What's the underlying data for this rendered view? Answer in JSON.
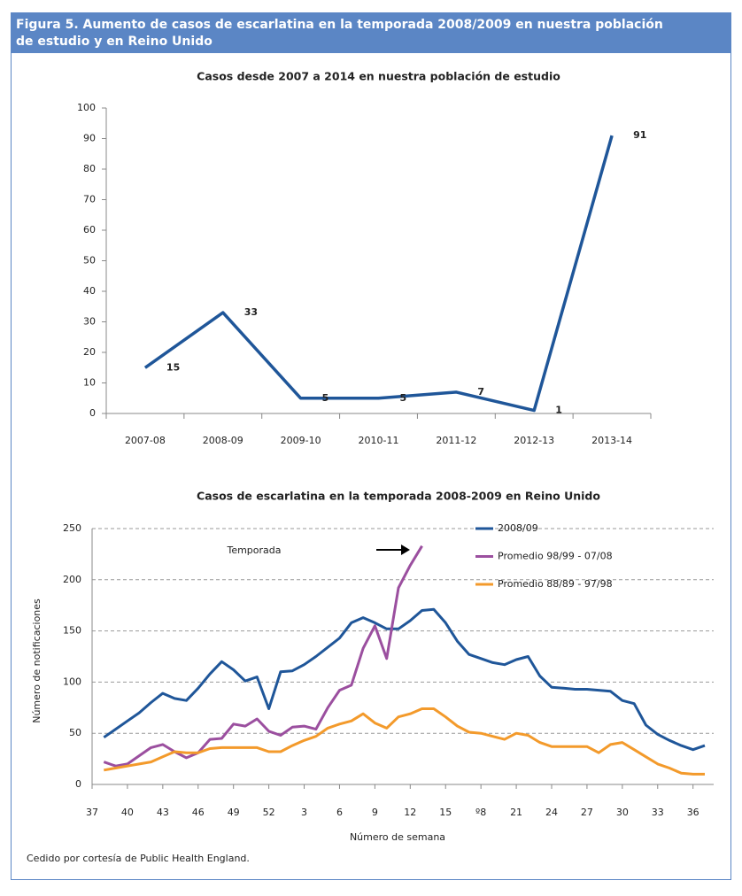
{
  "header": {
    "title": "Figura 5. Aumento de casos de escarlatina en la temporada 2008/2009 en nuestra población de estudio y en Reino Unido"
  },
  "chart_data": [
    {
      "type": "line",
      "title": "Casos desde 2007 a 2014 en nuestra población de estudio",
      "categories": [
        "2007-08",
        "2008-09",
        "2009-10",
        "2010-11",
        "2011-12",
        "2012-13",
        "2013-14"
      ],
      "values": [
        15,
        33,
        5,
        5,
        7,
        1,
        91
      ],
      "color": "#1f5699",
      "ylim": [
        0,
        100
      ],
      "yticks": [
        0,
        10,
        20,
        30,
        40,
        50,
        60,
        70,
        80,
        90,
        100
      ],
      "grid": false
    },
    {
      "type": "line",
      "title": "Casos de escarlatina en la temporada 2008-2009 en Reino Unido",
      "xlabel": "Número de semana",
      "ylabel": "Número de notificaciones",
      "annotation": "Temporada",
      "categories": [
        "37",
        null,
        null,
        "40",
        null,
        null,
        "43",
        null,
        null,
        "46",
        null,
        null,
        "49",
        null,
        null,
        "52",
        null,
        null,
        "3",
        null,
        null,
        "6",
        null,
        null,
        "9",
        null,
        null,
        "12",
        null,
        null,
        "15",
        null,
        null,
        "º8",
        null,
        null,
        "21",
        null,
        null,
        "24",
        null,
        null,
        "27",
        null,
        null,
        "30",
        null,
        null,
        "33",
        null,
        null,
        "36",
        null
      ],
      "series": [
        {
          "name": "2008/09",
          "color": "#1f5699",
          "values": [
            null,
            46,
            54,
            62,
            70,
            80,
            89,
            84,
            82,
            94,
            108,
            120,
            112,
            101,
            105,
            74,
            110,
            111,
            117,
            125,
            134,
            143,
            158,
            163,
            158,
            152,
            152,
            160,
            170,
            171,
            158,
            140,
            127,
            123,
            119,
            117,
            122,
            125,
            106,
            95,
            94,
            93,
            93,
            92,
            91,
            82,
            79,
            58,
            49,
            43,
            38,
            34,
            38
          ]
        },
        {
          "name": "Promedio 98/99 - 07/08",
          "color": "#9b4f9f",
          "values": [
            null,
            22,
            18,
            20,
            28,
            36,
            39,
            32,
            26,
            31,
            44,
            45,
            59,
            57,
            64,
            52,
            48,
            56,
            57,
            54,
            75,
            92,
            97,
            133,
            155,
            123,
            192,
            214,
            233,
            null,
            null,
            null,
            null,
            null,
            null,
            null,
            null,
            null,
            null,
            null,
            null,
            null,
            null,
            null,
            null,
            null,
            null,
            null,
            null,
            null,
            null,
            null,
            null
          ]
        },
        {
          "name": "Promedio 88/89 - 97/98",
          "color": "#f39a2b",
          "values": [
            null,
            14,
            16,
            18,
            20,
            22,
            27,
            32,
            31,
            31,
            35,
            36,
            36,
            36,
            36,
            32,
            32,
            38,
            43,
            47,
            55,
            59,
            62,
            69,
            60,
            55,
            66,
            69,
            74,
            74,
            66,
            57,
            51,
            50,
            47,
            44,
            50,
            48,
            41,
            37,
            37,
            37,
            37,
            31,
            39,
            41,
            34,
            27,
            20,
            16,
            11,
            10,
            10
          ]
        }
      ],
      "ylim": [
        0,
        250
      ],
      "yticks": [
        0,
        50,
        100,
        150,
        200,
        250
      ],
      "grid": true,
      "legend": "top-right"
    }
  ],
  "footer": {
    "text": "Cedido por cortesía de Public Health England."
  }
}
